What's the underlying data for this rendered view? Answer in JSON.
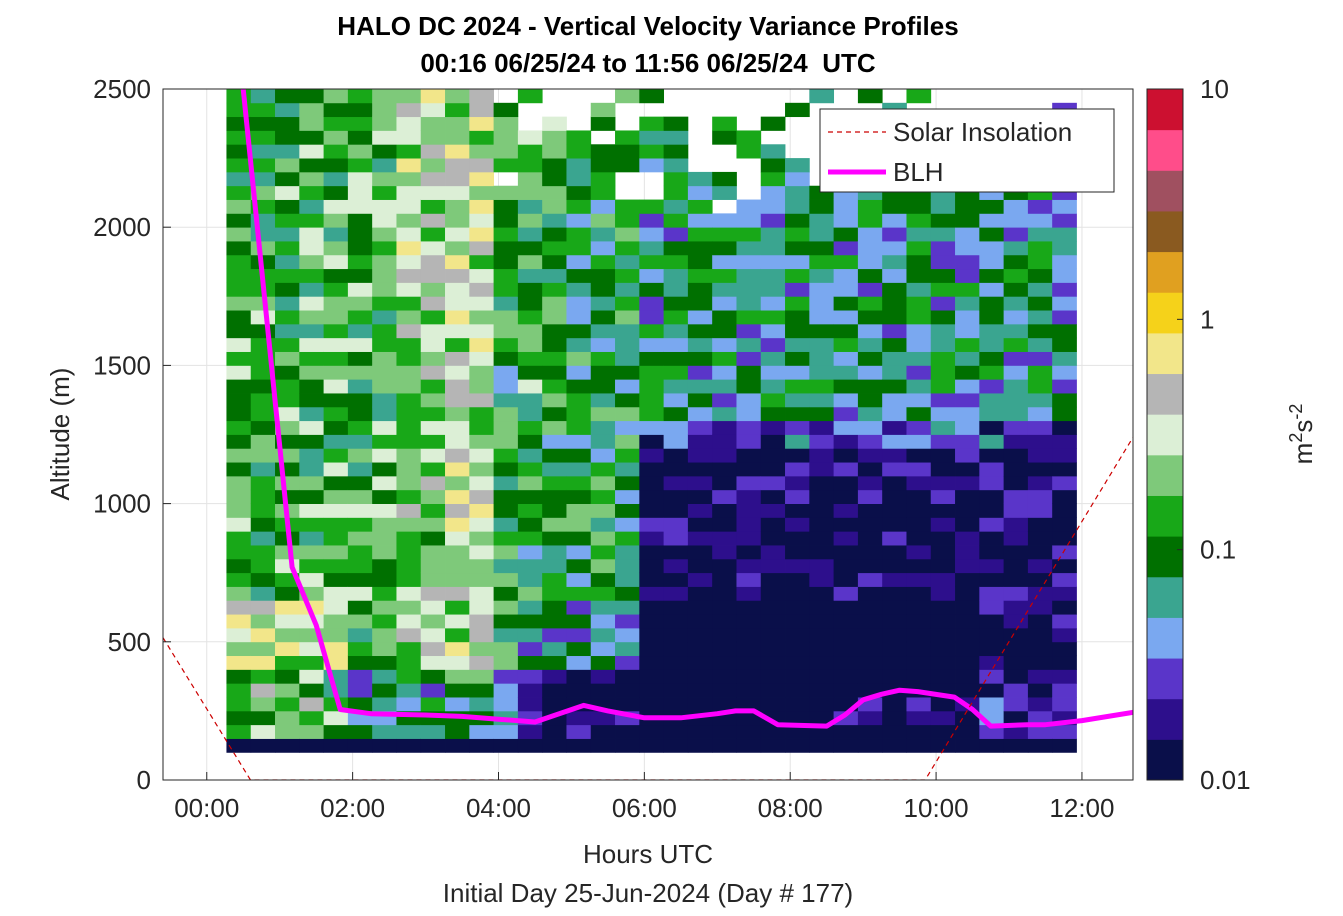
{
  "chart_data": {
    "type": "heatmap",
    "title": "HALO DC 2024 - Vertical Velocity Variance Profiles",
    "subtitle": "00:16 06/25/24 to 11:56 06/25/24  UTC",
    "xlabel": "Hours UTC",
    "xlabel2": "Initial Day 25-Jun-2024 (Day # 177)",
    "ylabel": "Altitude (m)",
    "colorbar_label": "m²s⁻²",
    "colorbar_label_parts": {
      "base": "m",
      "exp1": "2",
      "mid": "s",
      "exp2": "-2"
    },
    "colorbar_scale": "log",
    "colorbar_range": [
      0.01,
      10
    ],
    "colorbar_ticks": [
      "10",
      "1",
      "0.1",
      "0.01"
    ],
    "colorbar_tick_values": [
      10,
      1,
      0.1,
      0.01
    ],
    "xlim": [
      -0.6,
      12.7
    ],
    "ylim": [
      0,
      2500
    ],
    "x_ticks": [
      "00:00",
      "02:00",
      "04:00",
      "06:00",
      "08:00",
      "10:00",
      "12:00"
    ],
    "x_tick_values": [
      0,
      2,
      4,
      6,
      8,
      10,
      12
    ],
    "y_ticks": [
      "0",
      "500",
      "1000",
      "1500",
      "2000",
      "2500"
    ],
    "y_tick_values": [
      0,
      500,
      1000,
      1500,
      2000,
      2500
    ],
    "grid": true,
    "legend_position": "top-right",
    "legend": [
      "Solar Insolation",
      "BLH"
    ],
    "heatmap": {
      "x_start_hours": 0.27,
      "x_end_hours": 11.93,
      "bin_hours": 0.333,
      "y_start_m": 100,
      "y_end_m": 2500,
      "bin_m": 50,
      "lowest_row_value": 0.01,
      "description": "per-bin variance values; high (0.3-1) in 01:00-04:00 above 600 m, low (~0.01-0.02) after 06:00 below 1200 m"
    },
    "series": [
      {
        "name": "BLH",
        "color": "#ff00ff",
        "x": [
          0.5,
          1.17,
          1.5,
          1.83,
          2.25,
          3.0,
          3.5,
          4.0,
          4.5,
          5.17,
          5.5,
          6.0,
          6.5,
          7.0,
          7.25,
          7.5,
          7.83,
          8.5,
          8.75,
          9.0,
          9.25,
          9.5,
          9.75,
          10.25,
          10.5,
          10.75,
          11.25,
          11.5,
          12.0,
          12.7
        ],
        "y": [
          2500,
          770,
          560,
          255,
          240,
          235,
          230,
          220,
          210,
          270,
          250,
          225,
          225,
          240,
          250,
          250,
          200,
          195,
          235,
          290,
          310,
          325,
          320,
          300,
          255,
          195,
          200,
          200,
          215,
          245
        ]
      },
      {
        "name": "Solar Insolation",
        "color": "#cc0000",
        "style": "dashed",
        "x": [
          -0.6,
          0.6,
          9.85,
          12.7
        ],
        "y": [
          515,
          0,
          0,
          1240
        ]
      }
    ],
    "colors": {
      "colormap": [
        "#0a0f4a",
        "#2d0f8c",
        "#5a35c9",
        "#7aa8f0",
        "#3aa590",
        "#007000",
        "#18a818",
        "#7ec97a",
        "#dcefd6",
        "#b5b5b5",
        "#f2e68a",
        "#f5d21a",
        "#e0a020",
        "#8a5a20",
        "#a05060",
        "#ff4d8a",
        "#cc1030"
      ],
      "blh": "#ff00ff",
      "solar": "#cc0000"
    }
  }
}
